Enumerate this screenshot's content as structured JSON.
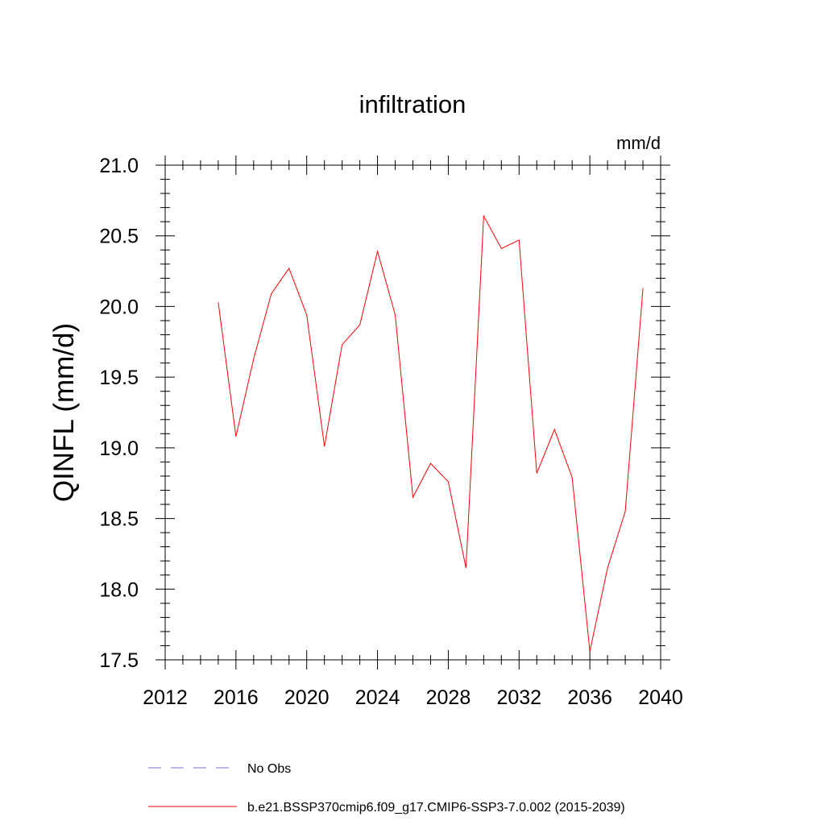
{
  "chart_data": {
    "type": "line",
    "title": "infiltration",
    "units": "mm/d",
    "xlabel": "",
    "ylabel": "QINFL  (mm/d)",
    "xlim": [
      2012,
      2040
    ],
    "ylim": [
      17.5,
      21.0
    ],
    "x_ticks": [
      2012,
      2016,
      2020,
      2024,
      2028,
      2032,
      2036,
      2040
    ],
    "x_tick_labels": [
      "2012",
      "2016",
      "2020",
      "2024",
      "2028",
      "2032",
      "2036",
      "2040"
    ],
    "y_ticks": [
      17.5,
      18.0,
      18.5,
      19.0,
      19.5,
      20.0,
      20.5,
      21.0
    ],
    "y_tick_labels": [
      "17.5",
      "18.0",
      "18.5",
      "19.0",
      "19.5",
      "20.0",
      "20.5",
      "21.0"
    ],
    "x_minor_step": 1,
    "y_minor_step": 0.1,
    "grid": false,
    "legend_position": "bottom",
    "series": [
      {
        "name": "b.e21.BSSP370cmip6.f09_g17.CMIP6-SSP3-7.0.002 (2015-2039)",
        "color": "#ff0000",
        "style": "solid",
        "x": [
          2015,
          2016,
          2017,
          2018,
          2019,
          2020,
          2021,
          2022,
          2023,
          2024,
          2025,
          2026,
          2027,
          2028,
          2029,
          2030,
          2031,
          2032,
          2033,
          2034,
          2035,
          2036,
          2037,
          2038,
          2039
        ],
        "values": [
          20.03,
          19.08,
          19.63,
          20.09,
          20.27,
          19.94,
          19.01,
          19.73,
          19.87,
          20.39,
          19.94,
          18.65,
          18.89,
          18.76,
          18.15,
          20.64,
          20.41,
          20.47,
          18.82,
          19.13,
          18.79,
          17.56,
          18.15,
          18.55,
          20.13
        ]
      },
      {
        "name": "No Obs",
        "color": "#7b6fd6",
        "style": "dashed",
        "x": [],
        "values": []
      }
    ]
  }
}
